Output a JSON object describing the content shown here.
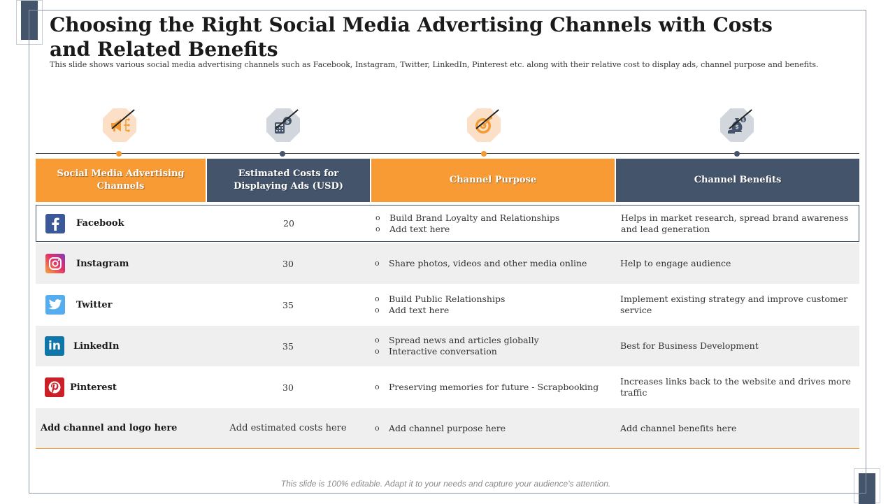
{
  "slide": {
    "title": "Choosing the Right Social Media Advertising Channels with Costs and Related Benefits",
    "subtitle": "This slide shows various social media advertising channels such as Facebook, Instagram, Twitter, LinkedIn, Pinterest etc. along with their relative cost to display ads, channel purpose and benefits.",
    "footer": "This slide is 100% editable. Adapt it to your needs and capture your audience's attention."
  },
  "icons": [
    "megaphone-icon",
    "calculator-dollar-icon",
    "target-icon",
    "hand-money-bag-icon"
  ],
  "colors": {
    "orange": "#f89b35",
    "navy": "#44546a",
    "alt_row": "#efefef"
  },
  "table": {
    "headers": {
      "channel": "Social Media Advertising Channels",
      "cost": "Estimated Costs for Displaying Ads (USD)",
      "purpose": "Channel Purpose",
      "benefits": "Channel Benefits"
    },
    "rows": [
      {
        "name": "Facebook",
        "cost": "20",
        "purpose": [
          "Build Brand Loyalty and Relationships",
          "Add text here"
        ],
        "benefit": "Helps in market research, spread brand awareness and lead generation"
      },
      {
        "name": "Instagram",
        "cost": "30",
        "purpose": [
          "Share photos, videos and other media online"
        ],
        "benefit": "Help to engage audience"
      },
      {
        "name": "Twitter",
        "cost": "35",
        "purpose": [
          "Build Public Relationships",
          "Add text here"
        ],
        "benefit": "Implement existing strategy and improve customer service"
      },
      {
        "name": "LinkedIn",
        "cost": "35",
        "purpose": [
          "Spread news and articles globally",
          "Interactive conversation"
        ],
        "benefit": "Best for Business Development"
      },
      {
        "name": "Pinterest",
        "cost": "30",
        "purpose": [
          "Preserving memories for future - Scrapbooking"
        ],
        "benefit": "Increases links back to the website and drives more traffic"
      },
      {
        "name": "Add channel and logo here",
        "cost": "Add estimated costs here",
        "purpose": [
          "Add channel purpose here"
        ],
        "benefit": "Add channel benefits here"
      }
    ]
  }
}
